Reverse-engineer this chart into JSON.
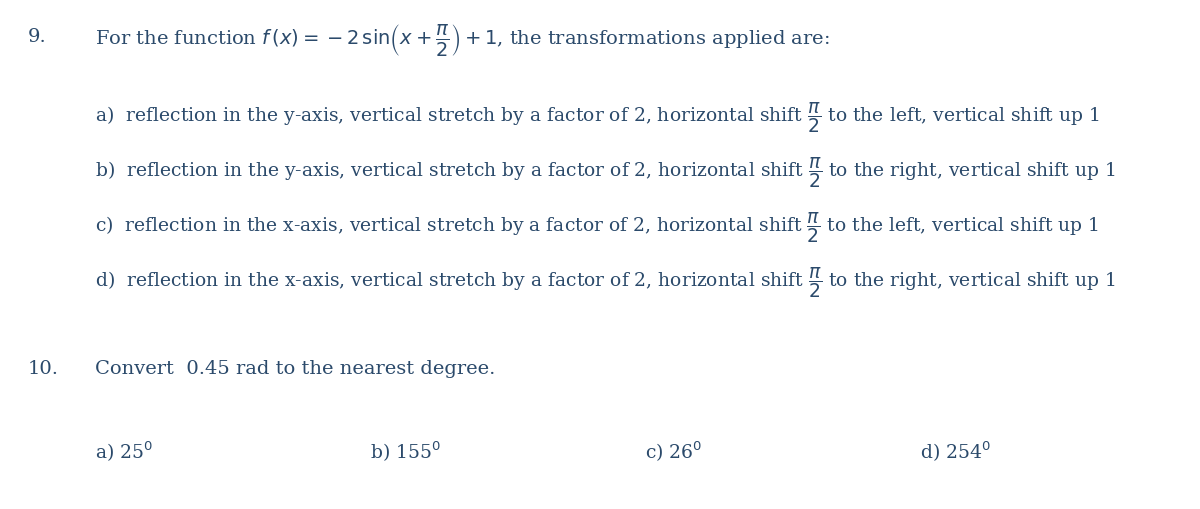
{
  "background_color": "#ffffff",
  "text_color": "#2b4a6b",
  "font_size_q": 14,
  "font_size_opt": 13.5,
  "q9_number": "9.",
  "q10_number": "10.",
  "q10_question": "Convert  0.45 rad to the nearest degree.",
  "q10_options": [
    "a) 25$^0$",
    "b) 155$^0$",
    "c) 26$^0$",
    "d) 254$^0$"
  ]
}
